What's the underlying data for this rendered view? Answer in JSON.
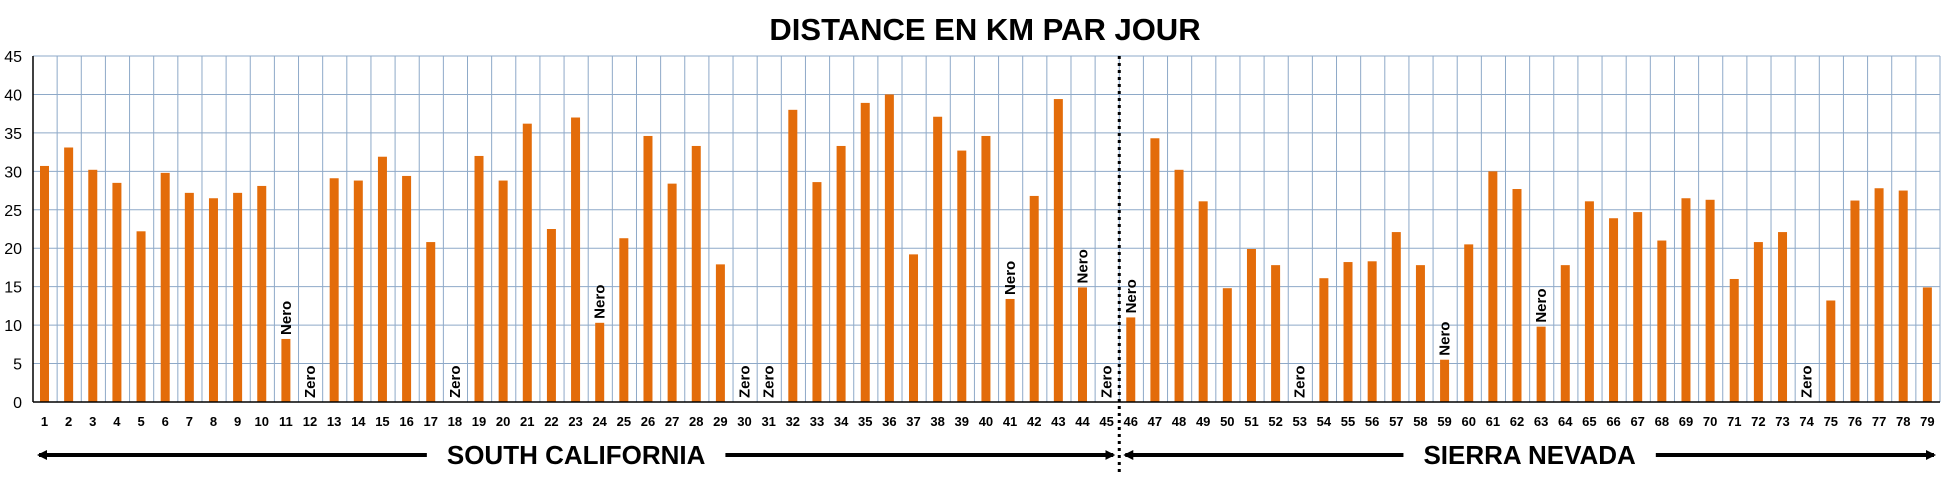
{
  "chart_data": {
    "type": "bar",
    "title": "DISTANCE EN KM PAR JOUR",
    "ylim": [
      0,
      45
    ],
    "yticks": [
      "0",
      "5",
      "10",
      "15",
      "20",
      "25",
      "30",
      "35",
      "40",
      "45"
    ],
    "grid": true,
    "bar_color": "#E36C0A",
    "grid_color": "#8EA9C8",
    "categories": [
      "1",
      "2",
      "3",
      "4",
      "5",
      "6",
      "7",
      "8",
      "9",
      "10",
      "11",
      "12",
      "13",
      "14",
      "15",
      "16",
      "17",
      "18",
      "19",
      "20",
      "21",
      "22",
      "23",
      "24",
      "25",
      "26",
      "27",
      "28",
      "29",
      "30",
      "31",
      "32",
      "33",
      "34",
      "35",
      "36",
      "37",
      "38",
      "39",
      "40",
      "41",
      "42",
      "43",
      "44",
      "45",
      "46",
      "47",
      "48",
      "49",
      "50",
      "51",
      "52",
      "53",
      "54",
      "55",
      "56",
      "57",
      "58",
      "59",
      "60",
      "61",
      "62",
      "63",
      "64",
      "65",
      "66",
      "67",
      "68",
      "69",
      "70",
      "71",
      "72",
      "73",
      "74",
      "75",
      "76",
      "77",
      "78",
      "79"
    ],
    "values": [
      30.7,
      33.1,
      30.2,
      28.5,
      22.2,
      29.8,
      27.2,
      26.5,
      27.2,
      28.1,
      8.2,
      0,
      29.1,
      28.8,
      31.9,
      29.4,
      20.8,
      0,
      32.0,
      28.8,
      36.2,
      22.5,
      37.0,
      10.3,
      21.3,
      34.6,
      28.4,
      33.3,
      17.9,
      0,
      0,
      38.0,
      28.6,
      33.3,
      38.9,
      40.0,
      19.2,
      37.1,
      32.7,
      34.6,
      13.4,
      26.8,
      39.4,
      14.9,
      0,
      11.0,
      34.3,
      30.2,
      26.1,
      14.8,
      19.9,
      17.8,
      0,
      16.1,
      18.2,
      18.3,
      22.1,
      17.8,
      5.5,
      20.5,
      30.0,
      27.7,
      9.8,
      17.8,
      26.1,
      23.9,
      24.7,
      21.0,
      26.5,
      26.3,
      16.0,
      20.8,
      22.1,
      0,
      13.2,
      26.2,
      27.8,
      27.5,
      14.9
    ],
    "annotations": [
      {
        "category": "11",
        "text": "Nero"
      },
      {
        "category": "12",
        "text": "Zero"
      },
      {
        "category": "18",
        "text": "Zero"
      },
      {
        "category": "24",
        "text": "Nero"
      },
      {
        "category": "30",
        "text": "Zero"
      },
      {
        "category": "31",
        "text": "Zero"
      },
      {
        "category": "41",
        "text": "Nero"
      },
      {
        "category": "44",
        "text": "Nero"
      },
      {
        "category": "45",
        "text": "Zero"
      },
      {
        "category": "46",
        "text": "Nero"
      },
      {
        "category": "53",
        "text": "Zero"
      },
      {
        "category": "59",
        "text": "Nero"
      },
      {
        "category": "63",
        "text": "Nero"
      },
      {
        "category": "74",
        "text": "Zero"
      }
    ],
    "regions": [
      {
        "label": "SOUTH CALIFORNIA",
        "from": "1",
        "to": "45"
      },
      {
        "label": "SIERRA NEVADA",
        "from": "46",
        "to": "79"
      }
    ]
  }
}
